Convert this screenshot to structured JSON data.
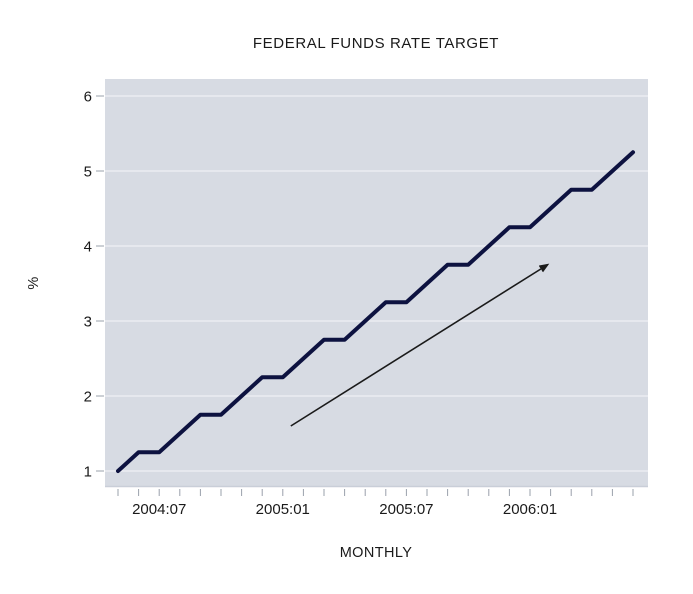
{
  "title": "FEDERAL FUNDS RATE TARGET",
  "chart_data": {
    "type": "line",
    "title": "FEDERAL FUNDS RATE TARGET",
    "xlabel": "MONTHLY",
    "ylabel": "%",
    "series_name": "federal-funds-rate-target",
    "x": [
      "2004:05",
      "2004:06",
      "2004:07",
      "2004:08",
      "2004:09",
      "2004:10",
      "2004:11",
      "2004:12",
      "2005:01",
      "2005:02",
      "2005:03",
      "2005:04",
      "2005:05",
      "2005:06",
      "2005:07",
      "2005:08",
      "2005:09",
      "2005:10",
      "2005:11",
      "2005:12",
      "2006:01",
      "2006:02",
      "2006:03",
      "2006:04",
      "2006:05",
      "2006:06"
    ],
    "values": [
      1.0,
      1.25,
      1.25,
      1.5,
      1.75,
      1.75,
      2.0,
      2.25,
      2.25,
      2.5,
      2.75,
      2.75,
      3.0,
      3.25,
      3.25,
      3.5,
      3.75,
      3.75,
      4.0,
      4.25,
      4.25,
      4.5,
      4.75,
      4.75,
      5.0,
      5.25
    ],
    "yticks": [
      1,
      2,
      3,
      4,
      5,
      6
    ],
    "ylim": [
      0.8,
      6.25
    ],
    "xtick_labels": [
      "2004:07",
      "2005:01",
      "2005:07",
      "2006:01"
    ],
    "grid": "horizontal-only",
    "legend": "none",
    "annotation": {
      "type": "arrow-up-right",
      "from": {
        "month": "2005:01",
        "value": 1.6
      },
      "to": {
        "month": "2006:02",
        "value": 3.75
      }
    },
    "colors": {
      "line": "#0d1240",
      "plot_bg": "#d7dbe3",
      "gridline": "#eef0f4",
      "tick": "#9aa0ab",
      "arrow": "#1a1a1a",
      "page_bg": "#ffffff"
    }
  }
}
